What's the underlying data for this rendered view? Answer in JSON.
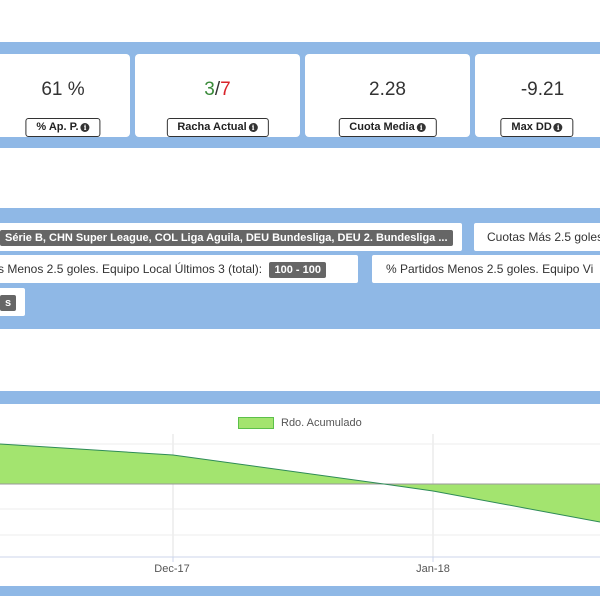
{
  "stats": [
    {
      "value": "61 %",
      "label": "% Ap. P."
    },
    {
      "value_good": "3",
      "value_sep": "/",
      "value_bad": "7",
      "label": "Racha Actual"
    },
    {
      "value": "2.28",
      "label": "Cuota Media"
    },
    {
      "value": "-9.21",
      "label": "Max DD"
    }
  ],
  "filters": {
    "leagues_tag": "Série B, CHN Super League, COL Liga Aguila, DEU Bundesliga, DEU 2. Bundesliga ...",
    "cuotas_text": "Cuotas Más 2.5 goles",
    "local_text": "s Menos 2.5 goles. Equipo Local Últimos 3 (total):",
    "local_tag": "100 - 100",
    "visitante_text": "% Partidos Menos 2.5 goles. Equipo Vi",
    "extra_tag": "s"
  },
  "chart_data": {
    "type": "area",
    "title": "",
    "xlabel": "",
    "ylabel": "",
    "x_ticks": [
      "Dec-17",
      "Jan-18"
    ],
    "series": [
      {
        "name": "Rdo. Acumulado",
        "color": "#a3e46f",
        "line_color": "#2e8b57"
      }
    ],
    "legend": "top-center",
    "grid": true
  }
}
